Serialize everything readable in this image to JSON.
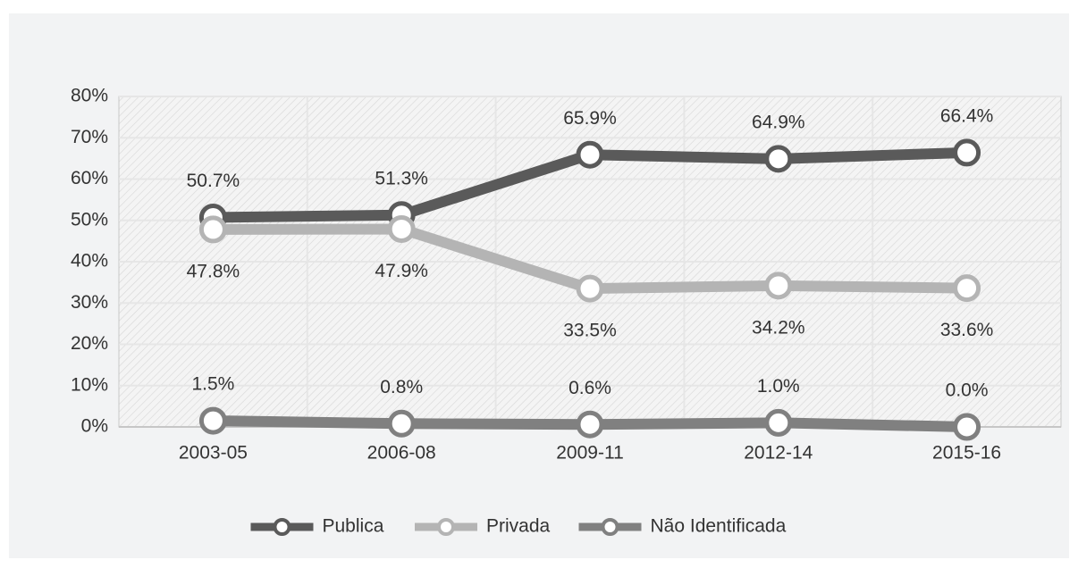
{
  "chart_data": {
    "type": "line",
    "categories": [
      "2003-05",
      "2006-08",
      "2009-11",
      "2012-14",
      "2015-16"
    ],
    "series": [
      {
        "name": "Publica",
        "color": "#5a5a5a",
        "values": [
          50.7,
          51.3,
          65.9,
          64.9,
          66.4
        ],
        "value_labels": [
          "50.7%",
          "51.3%",
          "65.9%",
          "64.9%",
          "66.4%"
        ]
      },
      {
        "name": "Privada",
        "color": "#b4b4b4",
        "values": [
          47.8,
          47.9,
          33.5,
          34.2,
          33.6
        ],
        "value_labels": [
          "47.8%",
          "47.9%",
          "33.5%",
          "34.2%",
          "33.6%"
        ]
      },
      {
        "name": "Não Identificada",
        "color": "#808080",
        "values": [
          1.5,
          0.8,
          0.6,
          1.0,
          0.0
        ],
        "value_labels": [
          "1.5%",
          "0.8%",
          "0.6%",
          "1.0%",
          "0.0%"
        ]
      }
    ],
    "ylim": [
      0,
      80
    ],
    "yticks": [
      {
        "value": 0,
        "label": "0%"
      },
      {
        "value": 10,
        "label": "10%"
      },
      {
        "value": 20,
        "label": "20%"
      },
      {
        "value": 30,
        "label": "30%"
      },
      {
        "value": 40,
        "label": "40%"
      },
      {
        "value": 50,
        "label": "50%"
      },
      {
        "value": 60,
        "label": "60%"
      },
      {
        "value": 70,
        "label": "70%"
      },
      {
        "value": 80,
        "label": "80%"
      }
    ],
    "grid": true,
    "legend": "bottom"
  }
}
